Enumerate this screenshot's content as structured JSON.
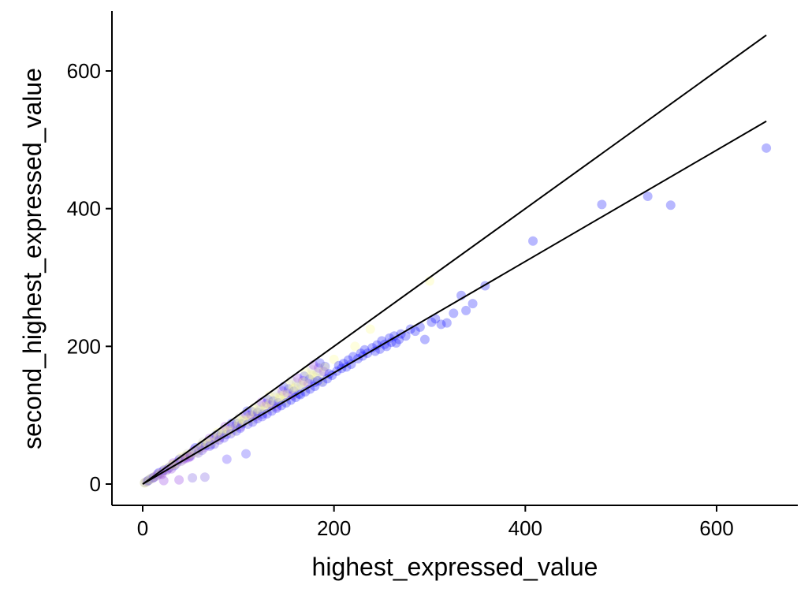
{
  "chart_data": {
    "type": "scatter",
    "title": "",
    "xlabel": "highest_expressed_value",
    "ylabel": "second_highest_expressed_value",
    "xlim": [
      -30,
      690
    ],
    "ylim": [
      -30,
      690
    ],
    "x_ticks": [
      0,
      200,
      400,
      600
    ],
    "y_ticks": [
      0,
      200,
      400,
      600
    ],
    "grid": false,
    "lines": [
      {
        "x": [
          0,
          652
        ],
        "y": [
          0,
          652
        ]
      },
      {
        "x": [
          0,
          652
        ],
        "y": [
          0,
          527
        ]
      }
    ],
    "points_cloud": {
      "note_colors": [
        "#fdfd8a",
        "#c8c8c8",
        "#8a2be2",
        "#0000ff"
      ]
    },
    "points": [
      {
        "x": 2,
        "y": 2,
        "color": "#a8a8a8"
      },
      {
        "x": 5,
        "y": 4,
        "color": "#a8a8a8"
      },
      {
        "x": 8,
        "y": 7,
        "color": "#b0b0b0"
      },
      {
        "x": 10,
        "y": 9,
        "color": "#c0c0c0"
      },
      {
        "x": 12,
        "y": 10,
        "color": "#9a6ad8"
      },
      {
        "x": 15,
        "y": 12,
        "color": "#9a6ad8"
      },
      {
        "x": 18,
        "y": 15,
        "color": "#b0b0b0"
      },
      {
        "x": 20,
        "y": 14,
        "color": "#8a2be2"
      },
      {
        "x": 22,
        "y": 5,
        "color": "#8a2be2"
      },
      {
        "x": 25,
        "y": 20,
        "color": "#9a6ad8"
      },
      {
        "x": 28,
        "y": 24,
        "color": "#c8c8c8"
      },
      {
        "x": 30,
        "y": 22,
        "color": "#8a2be2"
      },
      {
        "x": 32,
        "y": 28,
        "color": "#e8e86a"
      },
      {
        "x": 35,
        "y": 29,
        "color": "#9a6ad8"
      },
      {
        "x": 38,
        "y": 6,
        "color": "#8a2be2"
      },
      {
        "x": 40,
        "y": 33,
        "color": "#9a6ad8"
      },
      {
        "x": 42,
        "y": 38,
        "color": "#fdfd8a"
      },
      {
        "x": 45,
        "y": 37,
        "color": "#8a2be2"
      },
      {
        "x": 48,
        "y": 42,
        "color": "#e8e86a"
      },
      {
        "x": 50,
        "y": 40,
        "color": "#8a2be2"
      },
      {
        "x": 52,
        "y": 9,
        "color": "#6a4adf"
      },
      {
        "x": 55,
        "y": 47,
        "color": "#c8c8c8"
      },
      {
        "x": 58,
        "y": 45,
        "color": "#6a4adf"
      },
      {
        "x": 60,
        "y": 52,
        "color": "#fdfd8a"
      },
      {
        "x": 62,
        "y": 49,
        "color": "#6a4adf"
      },
      {
        "x": 65,
        "y": 10,
        "color": "#6a4adf"
      },
      {
        "x": 68,
        "y": 59,
        "color": "#fdfd8a"
      },
      {
        "x": 70,
        "y": 55,
        "color": "#5a3aef"
      },
      {
        "x": 72,
        "y": 61,
        "color": "#c8c8c8"
      },
      {
        "x": 75,
        "y": 58,
        "color": "#5a3aef"
      },
      {
        "x": 78,
        "y": 67,
        "color": "#fdfd8a"
      },
      {
        "x": 80,
        "y": 64,
        "color": "#5a3aef"
      },
      {
        "x": 83,
        "y": 72,
        "color": "#fdfd8a"
      },
      {
        "x": 85,
        "y": 67,
        "color": "#4a2aff"
      },
      {
        "x": 88,
        "y": 36,
        "color": "#4a2aff"
      },
      {
        "x": 90,
        "y": 78,
        "color": "#fdfd8a"
      },
      {
        "x": 92,
        "y": 73,
        "color": "#4a2aff"
      },
      {
        "x": 95,
        "y": 82,
        "color": "#c8c8c8"
      },
      {
        "x": 98,
        "y": 77,
        "color": "#3a2aff"
      },
      {
        "x": 100,
        "y": 87,
        "color": "#fdfd8a"
      },
      {
        "x": 102,
        "y": 81,
        "color": "#3a2aff"
      },
      {
        "x": 105,
        "y": 92,
        "color": "#fdfd8a"
      },
      {
        "x": 108,
        "y": 44,
        "color": "#3a2aff"
      },
      {
        "x": 110,
        "y": 87,
        "color": "#3a2aff"
      },
      {
        "x": 112,
        "y": 98,
        "color": "#fdfd8a"
      },
      {
        "x": 115,
        "y": 90,
        "color": "#2a1aff"
      },
      {
        "x": 118,
        "y": 104,
        "color": "#fdfd8a"
      },
      {
        "x": 120,
        "y": 95,
        "color": "#2a1aff"
      },
      {
        "x": 123,
        "y": 108,
        "color": "#c8c8c8"
      },
      {
        "x": 125,
        "y": 98,
        "color": "#2a1aff"
      },
      {
        "x": 128,
        "y": 113,
        "color": "#fdfd8a"
      },
      {
        "x": 130,
        "y": 102,
        "color": "#1a0aff"
      },
      {
        "x": 133,
        "y": 117,
        "color": "#fdfd8a"
      },
      {
        "x": 135,
        "y": 106,
        "color": "#1a0aff"
      },
      {
        "x": 138,
        "y": 120,
        "color": "#c8c8c8"
      },
      {
        "x": 140,
        "y": 110,
        "color": "#1a0aff"
      },
      {
        "x": 143,
        "y": 126,
        "color": "#fdfd8a"
      },
      {
        "x": 145,
        "y": 114,
        "color": "#0000ff"
      },
      {
        "x": 148,
        "y": 130,
        "color": "#fdfd8a"
      },
      {
        "x": 150,
        "y": 118,
        "color": "#0000ff"
      },
      {
        "x": 153,
        "y": 134,
        "color": "#c8c8c8"
      },
      {
        "x": 155,
        "y": 122,
        "color": "#0000ff"
      },
      {
        "x": 158,
        "y": 139,
        "color": "#fdfd8a"
      },
      {
        "x": 160,
        "y": 126,
        "color": "#0000ff"
      },
      {
        "x": 163,
        "y": 143,
        "color": "#c8c8c8"
      },
      {
        "x": 165,
        "y": 130,
        "color": "#0000ff"
      },
      {
        "x": 168,
        "y": 148,
        "color": "#fdfd8a"
      },
      {
        "x": 170,
        "y": 134,
        "color": "#0000ff"
      },
      {
        "x": 173,
        "y": 153,
        "color": "#c8c8c8"
      },
      {
        "x": 175,
        "y": 138,
        "color": "#0000ff"
      },
      {
        "x": 178,
        "y": 158,
        "color": "#fdfd8a"
      },
      {
        "x": 180,
        "y": 142,
        "color": "#0000ff"
      },
      {
        "x": 183,
        "y": 150,
        "color": "#0000ff"
      },
      {
        "x": 185,
        "y": 163,
        "color": "#c8c8c8"
      },
      {
        "x": 188,
        "y": 148,
        "color": "#0000ff"
      },
      {
        "x": 190,
        "y": 170,
        "color": "#fdfd8a"
      },
      {
        "x": 193,
        "y": 153,
        "color": "#0000ff"
      },
      {
        "x": 195,
        "y": 160,
        "color": "#0000ff"
      },
      {
        "x": 198,
        "y": 158,
        "color": "#0000ff"
      },
      {
        "x": 200,
        "y": 181,
        "color": "#fdfd8a"
      },
      {
        "x": 203,
        "y": 164,
        "color": "#0000ff"
      },
      {
        "x": 205,
        "y": 172,
        "color": "#0000ff"
      },
      {
        "x": 208,
        "y": 168,
        "color": "#0000ff"
      },
      {
        "x": 210,
        "y": 175,
        "color": "#0000ff"
      },
      {
        "x": 213,
        "y": 170,
        "color": "#0000ff"
      },
      {
        "x": 215,
        "y": 180,
        "color": "#0000ff"
      },
      {
        "x": 218,
        "y": 174,
        "color": "#0000ff"
      },
      {
        "x": 220,
        "y": 185,
        "color": "#0000ff"
      },
      {
        "x": 222,
        "y": 200,
        "color": "#fdfd8a"
      },
      {
        "x": 225,
        "y": 182,
        "color": "#0000ff"
      },
      {
        "x": 228,
        "y": 190,
        "color": "#0000ff"
      },
      {
        "x": 230,
        "y": 186,
        "color": "#0000ff"
      },
      {
        "x": 232,
        "y": 195,
        "color": "#0000ff"
      },
      {
        "x": 235,
        "y": 190,
        "color": "#0000ff"
      },
      {
        "x": 238,
        "y": 225,
        "color": "#fdfd8a"
      },
      {
        "x": 240,
        "y": 198,
        "color": "#0000ff"
      },
      {
        "x": 243,
        "y": 193,
        "color": "#0000ff"
      },
      {
        "x": 245,
        "y": 202,
        "color": "#0000ff"
      },
      {
        "x": 248,
        "y": 196,
        "color": "#0000ff"
      },
      {
        "x": 250,
        "y": 208,
        "color": "#0000ff"
      },
      {
        "x": 253,
        "y": 203,
        "color": "#0000ff"
      },
      {
        "x": 255,
        "y": 200,
        "color": "#0000ff"
      },
      {
        "x": 258,
        "y": 212,
        "color": "#0000ff"
      },
      {
        "x": 260,
        "y": 206,
        "color": "#0000ff"
      },
      {
        "x": 263,
        "y": 215,
        "color": "#0000ff"
      },
      {
        "x": 265,
        "y": 205,
        "color": "#0000ff"
      },
      {
        "x": 268,
        "y": 210,
        "color": "#0000ff"
      },
      {
        "x": 270,
        "y": 218,
        "color": "#0000ff"
      },
      {
        "x": 275,
        "y": 215,
        "color": "#0000ff"
      },
      {
        "x": 280,
        "y": 225,
        "color": "#0000ff"
      },
      {
        "x": 285,
        "y": 222,
        "color": "#0000ff"
      },
      {
        "x": 290,
        "y": 228,
        "color": "#0000ff"
      },
      {
        "x": 295,
        "y": 210,
        "color": "#0000ff"
      },
      {
        "x": 300,
        "y": 295,
        "color": "#fdfd8a"
      },
      {
        "x": 302,
        "y": 235,
        "color": "#0000ff"
      },
      {
        "x": 306,
        "y": 240,
        "color": "#0000ff"
      },
      {
        "x": 312,
        "y": 232,
        "color": "#0000ff"
      },
      {
        "x": 318,
        "y": 234,
        "color": "#0000ff"
      },
      {
        "x": 325,
        "y": 248,
        "color": "#0000ff"
      },
      {
        "x": 333,
        "y": 274,
        "color": "#0000ff"
      },
      {
        "x": 338,
        "y": 252,
        "color": "#0000ff"
      },
      {
        "x": 345,
        "y": 262,
        "color": "#0000ff"
      },
      {
        "x": 358,
        "y": 288,
        "color": "#0000ff"
      },
      {
        "x": 408,
        "y": 353,
        "color": "#0000ff"
      },
      {
        "x": 480,
        "y": 406,
        "color": "#0000ff"
      },
      {
        "x": 528,
        "y": 418,
        "color": "#0000ff"
      },
      {
        "x": 552,
        "y": 405,
        "color": "#0000ff"
      },
      {
        "x": 652,
        "y": 488,
        "color": "#0000ff"
      }
    ]
  }
}
